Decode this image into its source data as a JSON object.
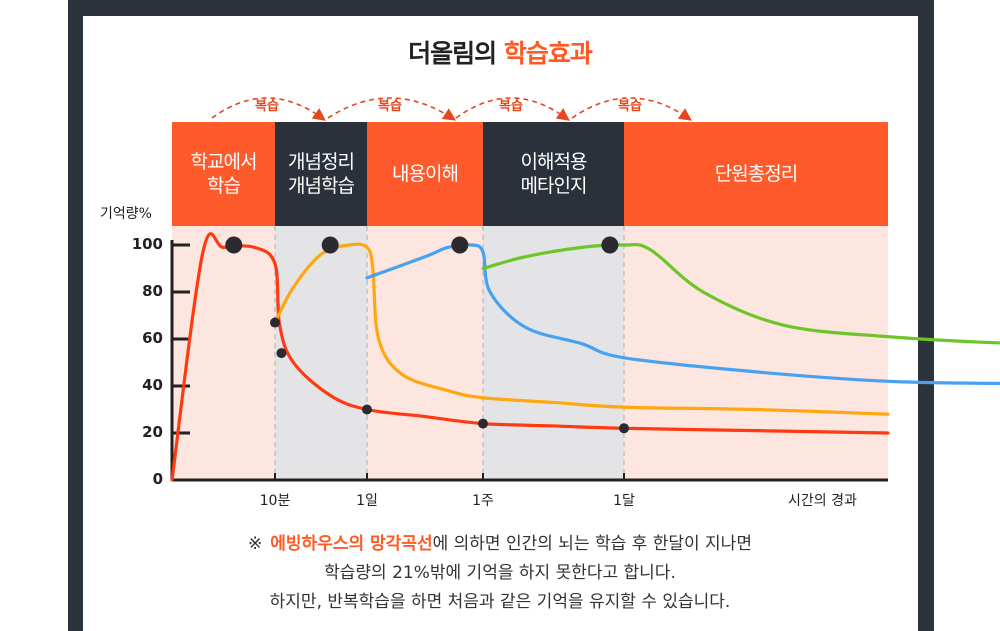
{
  "title": {
    "part1": "더올림의",
    "part2": "학습효과"
  },
  "colors": {
    "frame": "#2d333d",
    "accent": "#ff5a23",
    "band_orange": "#ff5a2b",
    "band_dark": "#2b313b",
    "plot_orange": "#fde6df",
    "plot_gray": "#e4e4e6",
    "curve_red": "#ff3a12",
    "curve_orange": "#ffa710",
    "curve_blue": "#46a2f1",
    "curve_green": "#6cc62a",
    "dot": "#2a2a30"
  },
  "phases": [
    {
      "label": "학교에서\n학습",
      "style": "orange"
    },
    {
      "label": "개념정리\n개념학습",
      "style": "dark"
    },
    {
      "label": "내용이해",
      "style": "orange"
    },
    {
      "label": "이해적용\n메타인지",
      "style": "dark"
    },
    {
      "label": "단원총정리",
      "style": "orange"
    }
  ],
  "review_label": "복습",
  "footnote": {
    "mark": "※",
    "highlight": "에빙하우스의 망각곡선",
    "line1_rest": "에 의하면 인간의 뇌는 학습 후 한달이 지나면",
    "line2": "학습량의 21%밖에 기억을 하지 못한다고 합니다.",
    "line3": "하지만, 반복학습을 하면 처음과 같은 기억을 유지할 수 있습니다."
  },
  "chart_data": {
    "type": "line",
    "ylabel": "기억량%",
    "xlabel": "시간의 경과",
    "ylim": [
      0,
      100
    ],
    "yticks": [
      0,
      20,
      40,
      60,
      80,
      100
    ],
    "xticks": [
      "10분",
      "1일",
      "1주",
      "1달"
    ],
    "series": [
      {
        "color": "curve_red",
        "points": [
          [
            0,
            0
          ],
          [
            0.3,
            97
          ],
          [
            0.5,
            99
          ],
          [
            0.8,
            99
          ],
          [
            1.0,
            92
          ],
          [
            1.05,
            66
          ],
          [
            1.2,
            50
          ],
          [
            1.6,
            36
          ],
          [
            2.0,
            30
          ],
          [
            2.5,
            27
          ],
          [
            3.0,
            24
          ],
          [
            3.5,
            23
          ],
          [
            4.0,
            22
          ],
          [
            4.5,
            21
          ],
          [
            5.0,
            20
          ]
        ]
      },
      {
        "color": "curve_orange",
        "points": [
          [
            1.0,
            67
          ],
          [
            1.2,
            82
          ],
          [
            1.5,
            96
          ],
          [
            1.8,
            100
          ],
          [
            2.0,
            99
          ],
          [
            2.05,
            90
          ],
          [
            2.1,
            60
          ],
          [
            2.3,
            45
          ],
          [
            2.7,
            38
          ],
          [
            3.0,
            35
          ],
          [
            3.5,
            33
          ],
          [
            4.0,
            31
          ],
          [
            4.5,
            30
          ],
          [
            5.0,
            28
          ]
        ]
      },
      {
        "color": "curve_blue",
        "points": [
          [
            2.0,
            86
          ],
          [
            2.5,
            95
          ],
          [
            2.7,
            99
          ],
          [
            2.9,
            100
          ],
          [
            3.0,
            97
          ],
          [
            3.05,
            80
          ],
          [
            3.3,
            65
          ],
          [
            3.7,
            58
          ],
          [
            4.0,
            52
          ],
          [
            4.5,
            46
          ],
          [
            5.0,
            42
          ],
          [
            5.5,
            41
          ]
        ]
      },
      {
        "color": "curve_green",
        "points": [
          [
            3.0,
            90
          ],
          [
            3.3,
            95
          ],
          [
            3.7,
            99
          ],
          [
            4.0,
            100
          ],
          [
            4.1,
            98
          ],
          [
            4.3,
            80
          ],
          [
            4.6,
            66
          ],
          [
            5.0,
            61
          ],
          [
            5.5,
            58
          ],
          [
            6.0,
            57
          ],
          [
            6.5,
            56
          ]
        ]
      }
    ],
    "peaks": [
      [
        0.6,
        100
      ],
      [
        1.6,
        100
      ],
      [
        2.8,
        100
      ],
      [
        3.9,
        100
      ]
    ],
    "decay_points": [
      [
        1.0,
        67
      ],
      [
        1.07,
        54
      ],
      [
        2.0,
        30
      ],
      [
        3.0,
        24
      ],
      [
        4.0,
        22
      ]
    ]
  }
}
